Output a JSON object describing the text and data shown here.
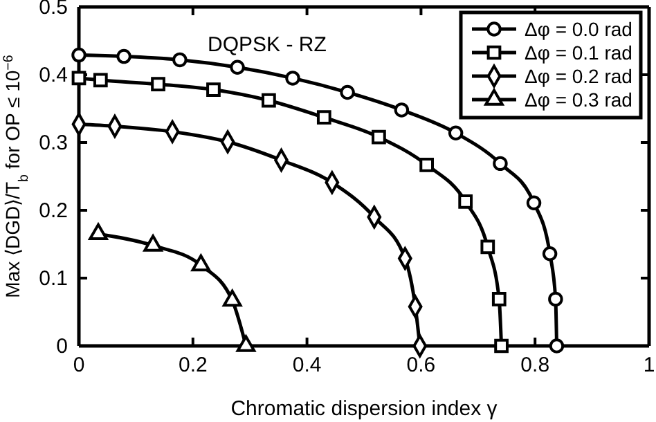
{
  "chart_data": {
    "type": "line",
    "title": "DQPSK - RZ",
    "xlabel": "Chromatic dispersion index γ",
    "ylabel": "Max ⟨DGD⟩/T$_{b}$  for  OP ≤ 10$^{−6}$",
    "xlim": [
      0,
      1
    ],
    "xticks": [
      0,
      0.2,
      0.4,
      0.6,
      0.8,
      1
    ],
    "ylim": [
      0,
      0.5
    ],
    "yticks": [
      0,
      0.1,
      0.2,
      0.3,
      0.4,
      0.5
    ],
    "grid": false,
    "legend": "top right",
    "series": [
      {
        "name": "Δφ = 0.0 rad",
        "color": "#000000",
        "marker": "circle",
        "x": [
          0,
          0.079,
          0.177,
          0.278,
          0.375,
          0.471,
          0.566,
          0.661,
          0.739,
          0.798,
          0.826,
          0.836,
          0.838
        ],
        "values": [
          0.429,
          0.427,
          0.422,
          0.411,
          0.395,
          0.374,
          0.348,
          0.314,
          0.269,
          0.211,
          0.136,
          0.069,
          0
        ]
      },
      {
        "name": "Δφ = 0.1 rad",
        "color": "#000000",
        "marker": "square",
        "x": [
          0,
          0.038,
          0.139,
          0.236,
          0.333,
          0.43,
          0.526,
          0.61,
          0.678,
          0.717,
          0.737,
          0.741
        ],
        "values": [
          0.395,
          0.392,
          0.386,
          0.378,
          0.362,
          0.337,
          0.308,
          0.267,
          0.213,
          0.146,
          0.069,
          0
        ]
      },
      {
        "name": "Δφ = 0.2 rad",
        "color": "#000000",
        "marker": "diamond",
        "x": [
          0,
          0.063,
          0.164,
          0.261,
          0.355,
          0.444,
          0.518,
          0.572,
          0.59,
          0.598
        ],
        "values": [
          0.327,
          0.324,
          0.316,
          0.301,
          0.274,
          0.241,
          0.19,
          0.129,
          0.058,
          0
        ]
      },
      {
        "name": "Δφ = 0.3 rad",
        "color": "#000000",
        "marker": "triangle",
        "x": [
          0.034,
          0.13,
          0.214,
          0.269,
          0.293
        ],
        "values": [
          0.165,
          0.148,
          0.119,
          0.067,
          0
        ]
      }
    ]
  }
}
